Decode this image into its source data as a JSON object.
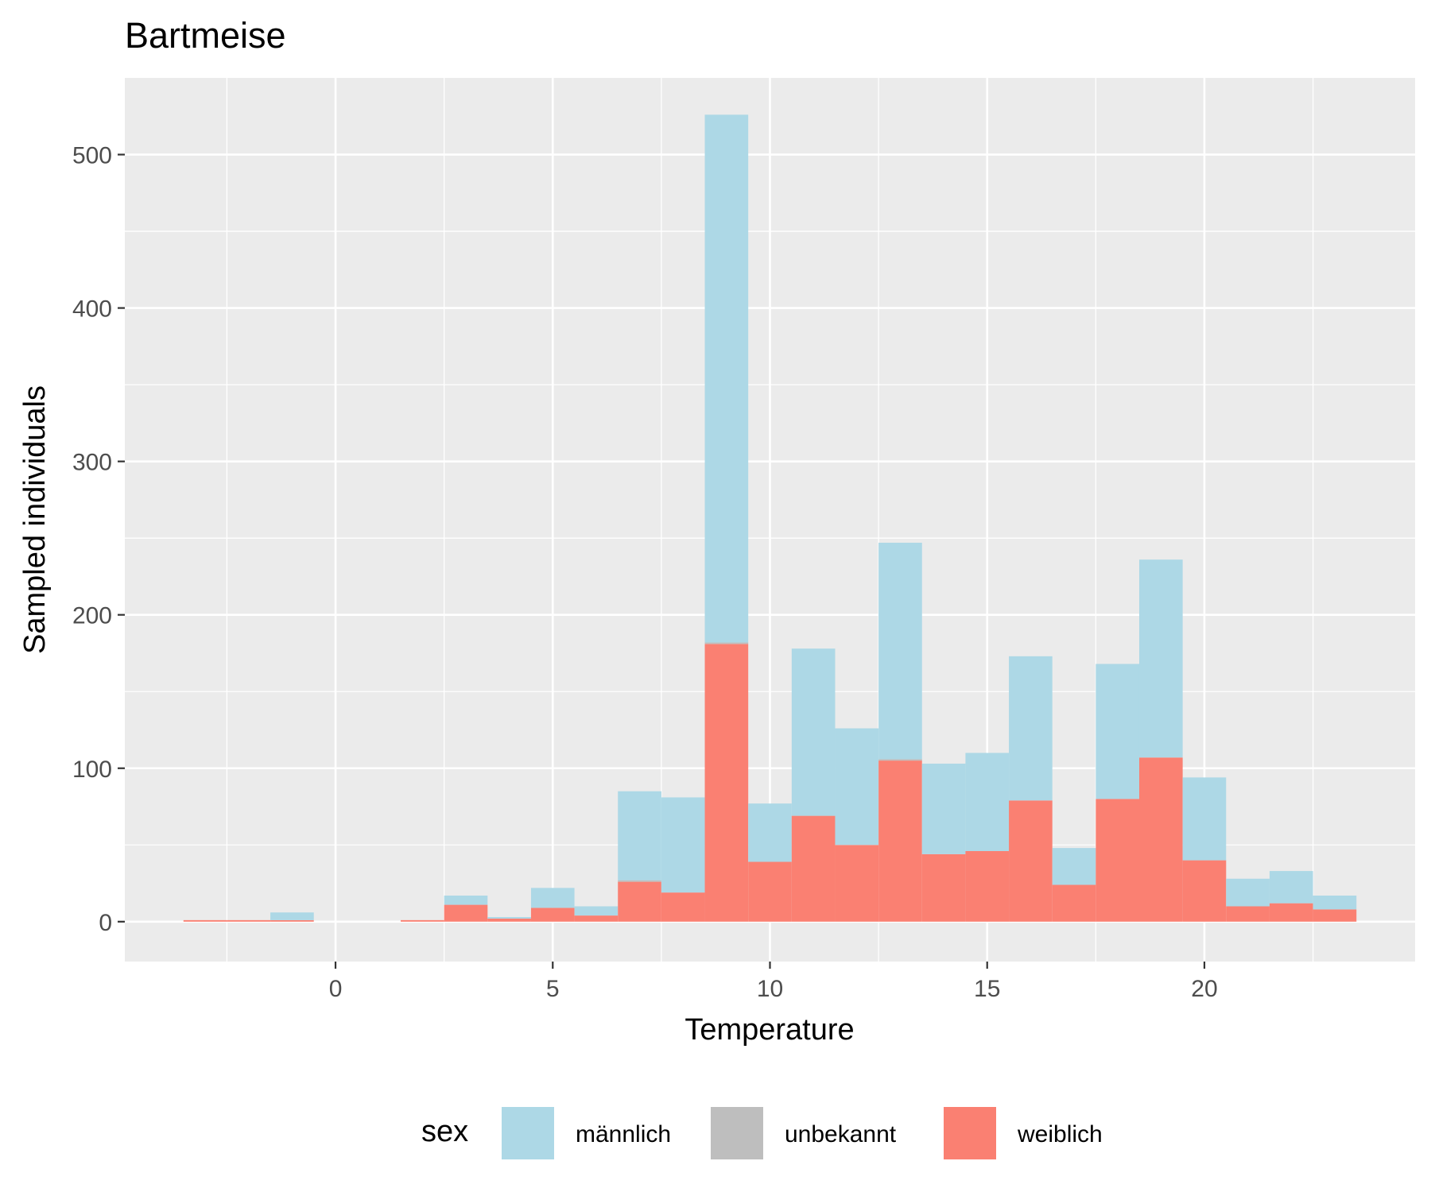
{
  "chart_data": {
    "type": "bar",
    "title": "Bartmeise",
    "xlabel": "Temperature",
    "ylabel": "Sampled individuals",
    "xlim": [
      -4.85,
      24.85
    ],
    "ylim": [
      -26,
      550
    ],
    "x_ticks": [
      0,
      5,
      10,
      15,
      20
    ],
    "x_tick_labels": [
      "0",
      "5",
      "10",
      "15",
      "20"
    ],
    "y_ticks": [
      0,
      100,
      200,
      300,
      400,
      500
    ],
    "y_tick_labels": [
      "0",
      "100",
      "200",
      "300",
      "400",
      "500"
    ],
    "grid": true,
    "stacked": true,
    "bin_width": 1,
    "bin_centers": [
      -3,
      -2,
      -1,
      0,
      1,
      2,
      3,
      4,
      5,
      6,
      7,
      8,
      9,
      10,
      11,
      12,
      13,
      14,
      15,
      16,
      17,
      18,
      19,
      20,
      21,
      22,
      23
    ],
    "series": [
      {
        "name": "männlich",
        "color": "#add8e6",
        "values": [
          0,
          0,
          5,
          0,
          0,
          0,
          6,
          1,
          13,
          6,
          58,
          62,
          344,
          38,
          109,
          76,
          141,
          59,
          64,
          94,
          24,
          88,
          129,
          54,
          18,
          21,
          9
        ]
      },
      {
        "name": "unbekannt",
        "color": "#bebebe",
        "values": [
          0,
          0,
          0,
          0,
          0,
          0,
          0,
          0,
          0,
          0,
          1,
          0,
          1,
          0,
          0,
          0,
          1,
          0,
          0,
          0,
          0,
          0,
          0,
          0,
          0,
          0,
          0
        ]
      },
      {
        "name": "weiblich",
        "color": "#fa8072",
        "values": [
          1,
          1,
          1,
          0,
          0,
          1,
          11,
          2,
          9,
          4,
          26,
          19,
          181,
          39,
          69,
          50,
          105,
          44,
          46,
          79,
          24,
          80,
          107,
          40,
          10,
          12,
          8
        ]
      }
    ],
    "legend": {
      "title": "sex",
      "position": "bottom",
      "entries": [
        "männlich",
        "unbekannt",
        "weiblich"
      ]
    }
  }
}
